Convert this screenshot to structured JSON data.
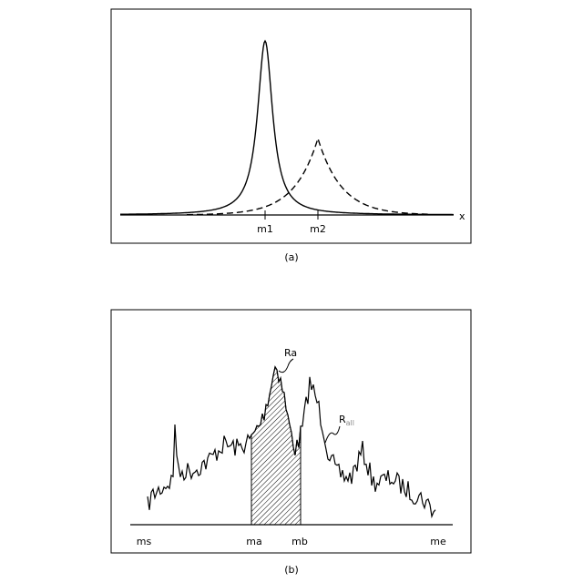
{
  "panel_a": {
    "axis_label": "x",
    "ticks": [
      "m1",
      "m2"
    ],
    "caption": "(a)"
  },
  "panel_b": {
    "ticks": [
      "ms",
      "ma",
      "mb",
      "me"
    ],
    "region_label": "Ra",
    "curve_label": {
      "main": "R",
      "subscript": "all"
    },
    "caption": "(b)"
  }
}
